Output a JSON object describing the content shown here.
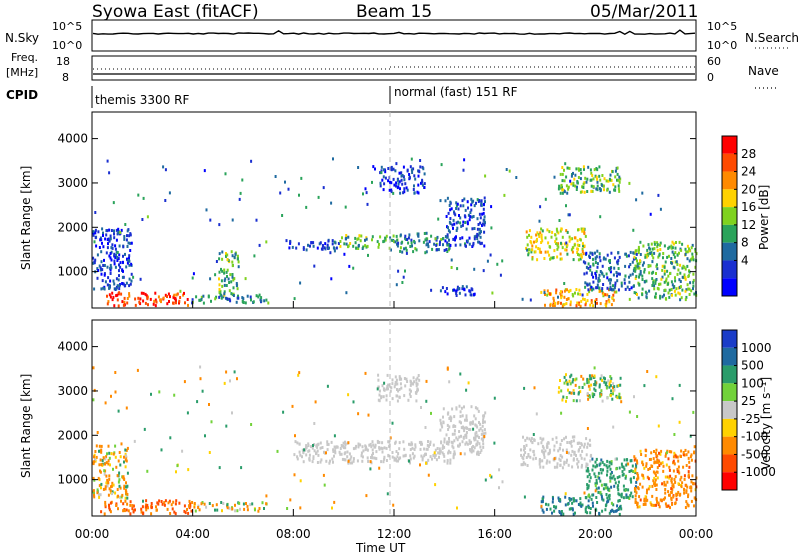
{
  "header": {
    "station": "Syowa East (fitACF)",
    "beam": "Beam 15",
    "date": "05/Mar/2011"
  },
  "status_panels": {
    "nsky_label": "N.Sky",
    "nsky_ticks": [
      "10^5",
      "10^0"
    ],
    "nsearch_label": "N.Search",
    "nsearch_ticks": [
      "10^5",
      "10^0"
    ],
    "freq_label_1": "Freq.",
    "freq_label_2": "[MHz]",
    "freq_ticks": [
      "18",
      "8"
    ],
    "nave_label": "Nave",
    "nave_ticks": [
      "60",
      "0"
    ],
    "cpid_label": "CPID",
    "cpid_entries": [
      {
        "name": "themis 3300 RF",
        "start_hour": 0
      },
      {
        "name": "normal (fast) 151 RF",
        "start_hour": 12
      }
    ]
  },
  "axes": {
    "xlabel": "Time UT",
    "x_ticks": [
      "00:00",
      "04:00",
      "08:00",
      "12:00",
      "16:00",
      "20:00",
      "00:00"
    ],
    "ylabel": "Slant Range [km]",
    "y_ticks": [
      "4000",
      "3000",
      "2000",
      "1000"
    ]
  },
  "colorbars": {
    "power": {
      "label": "Power [dB]",
      "ticks": [
        "28",
        "24",
        "20",
        "16",
        "12",
        "8",
        "4"
      ],
      "colors": [
        "#ff0000",
        "#ff4a00",
        "#ff8a00",
        "#ffd200",
        "#7fd21f",
        "#2aa35a",
        "#1f6aa0",
        "#1a2fd0",
        "#0000ff"
      ]
    },
    "velocity": {
      "label": "Velocity [m s⁻¹]",
      "ticks": [
        "1000",
        "500",
        "100",
        "25",
        "-25",
        "-100",
        "-500",
        "-1000"
      ],
      "colors": [
        "#1a3cc8",
        "#1f6aa0",
        "#2a9c6a",
        "#72d23a",
        "#c8c8c8",
        "#ffd200",
        "#ff8a00",
        "#ff4a00",
        "#ff0000"
      ]
    }
  },
  "chart_data": [
    {
      "type": "heatmap",
      "panel": "power",
      "x_range_hours": [
        0,
        24
      ],
      "y_range_km": [
        180,
        4600
      ],
      "colorbar_label": "Power [dB]",
      "colorbar_range_db": [
        0,
        32
      ],
      "regions": [
        {
          "t0": 0.5,
          "t1": 3.9,
          "r0": 260,
          "r1": 560,
          "db": 28
        },
        {
          "t0": 3.9,
          "t1": 7.0,
          "r0": 320,
          "r1": 520,
          "db": 10
        },
        {
          "t0": 0.0,
          "t1": 1.6,
          "r0": 600,
          "r1": 2000,
          "db": 6
        },
        {
          "t0": 5.0,
          "t1": 5.8,
          "r0": 500,
          "r1": 1500,
          "db": 14
        },
        {
          "t0": 7.8,
          "t1": 9.8,
          "r0": 1500,
          "r1": 1750,
          "db": 6
        },
        {
          "t0": 9.8,
          "t1": 12.2,
          "r0": 1550,
          "r1": 1850,
          "db": 14
        },
        {
          "t0": 12.2,
          "t1": 14.2,
          "r0": 1450,
          "r1": 1900,
          "db": 10
        },
        {
          "t0": 11.4,
          "t1": 13.2,
          "r0": 2800,
          "r1": 3400,
          "db": 5
        },
        {
          "t0": 14.0,
          "t1": 15.6,
          "r0": 1600,
          "r1": 2700,
          "db": 6
        },
        {
          "t0": 13.8,
          "t1": 15.2,
          "r0": 500,
          "r1": 700,
          "db": 4
        },
        {
          "t0": 17.2,
          "t1": 19.6,
          "r0": 1300,
          "r1": 2000,
          "db": 18
        },
        {
          "t0": 17.8,
          "t1": 20.8,
          "r0": 250,
          "r1": 650,
          "db": 22
        },
        {
          "t0": 19.5,
          "t1": 21.5,
          "r0": 600,
          "r1": 1500,
          "db": 8
        },
        {
          "t0": 21.5,
          "t1": 24.0,
          "r0": 400,
          "r1": 1700,
          "db": 14
        },
        {
          "t0": 18.5,
          "t1": 21.0,
          "r0": 2800,
          "r1": 3400,
          "db": 14
        }
      ]
    },
    {
      "type": "heatmap",
      "panel": "velocity",
      "x_range_hours": [
        0,
        24
      ],
      "y_range_km": [
        180,
        4600
      ],
      "colorbar_label": "Velocity [m s⁻¹]",
      "colorbar_levels_m_s": [
        1000,
        500,
        100,
        25,
        -25,
        -100,
        -500,
        -1000
      ],
      "regions": [
        {
          "t0": 0.3,
          "t1": 4.0,
          "r0": 260,
          "r1": 560,
          "vel": -500
        },
        {
          "t0": 0.0,
          "t1": 1.4,
          "r0": 600,
          "r1": 1800,
          "vel": -100
        },
        {
          "t0": 4.0,
          "t1": 7.0,
          "r0": 320,
          "r1": 520,
          "vel": -100
        },
        {
          "t0": 8.0,
          "t1": 14.4,
          "r0": 1400,
          "r1": 1900,
          "vel": 0
        },
        {
          "t0": 11.3,
          "t1": 13.0,
          "r0": 2800,
          "r1": 3400,
          "vel": 0
        },
        {
          "t0": 13.8,
          "t1": 15.6,
          "r0": 1600,
          "r1": 2700,
          "vel": 0
        },
        {
          "t0": 17.0,
          "t1": 19.8,
          "r0": 1300,
          "r1": 2000,
          "vel": 0
        },
        {
          "t0": 17.8,
          "t1": 21.0,
          "r0": 250,
          "r1": 650,
          "vel": 500
        },
        {
          "t0": 19.6,
          "t1": 21.6,
          "r0": 600,
          "r1": 1500,
          "vel": 300
        },
        {
          "t0": 21.5,
          "t1": 24.0,
          "r0": 400,
          "r1": 1700,
          "vel": -300
        },
        {
          "t0": 18.5,
          "t1": 21.0,
          "r0": 2800,
          "r1": 3400,
          "vel": 100
        }
      ]
    }
  ]
}
